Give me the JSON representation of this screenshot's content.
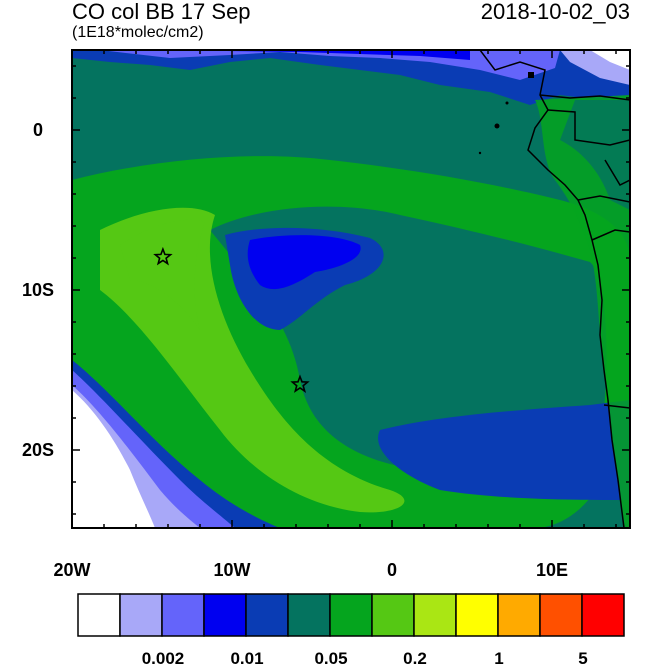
{
  "title": "CO col BB 17 Sep",
  "subtitle": "(1E18*molec/cm2)",
  "timestamp": "2018-10-02_03",
  "axes": {
    "x_ticks": [
      "20W",
      "10W",
      "0",
      "10E"
    ],
    "y_ticks": [
      "0",
      "10S",
      "20S"
    ],
    "lon_range": [
      -20,
      15
    ],
    "lat_range": [
      -25,
      5
    ]
  },
  "markers": [
    {
      "name": "star",
      "lon": -14.3,
      "lat": -8.0
    },
    {
      "name": "star",
      "lon": -5.7,
      "lat": -16.0
    }
  ],
  "colorbar": {
    "colors": [
      "#ffffff",
      "#a8a8f8",
      "#6464fa",
      "#0000f0",
      "#0a3cb4",
      "#04735f",
      "#05a51e",
      "#55c814",
      "#aae614",
      "#ffff00",
      "#ffaa00",
      "#ff5000",
      "#ff0000"
    ],
    "labels": [
      "0.002",
      "0.01",
      "0.05",
      "0.2",
      "1",
      "5"
    ]
  }
}
